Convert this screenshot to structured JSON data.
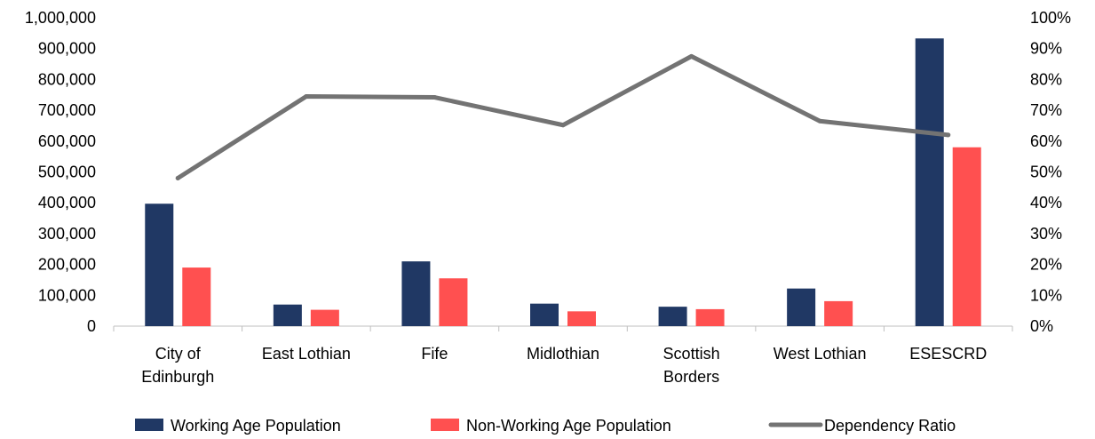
{
  "chart_data": {
    "type": "bar",
    "title": "",
    "categories": [
      [
        "City of",
        "Edinburgh"
      ],
      [
        "East Lothian"
      ],
      [
        "Fife"
      ],
      [
        "Midlothian"
      ],
      [
        "Scottish",
        "Borders"
      ],
      [
        "West Lothian"
      ],
      [
        "ESESCRD"
      ]
    ],
    "series": [
      {
        "name": "Working Age Population",
        "kind": "bar",
        "axis": "left",
        "color": "#203864",
        "values": [
          397000,
          70000,
          210000,
          73000,
          63000,
          122000,
          933000
        ]
      },
      {
        "name": "Non-Working Age Population",
        "kind": "bar",
        "axis": "left",
        "color": "#FF5050",
        "values": [
          190000,
          53000,
          155000,
          48000,
          55000,
          81000,
          580000
        ]
      },
      {
        "name": "Dependency Ratio",
        "kind": "line",
        "axis": "right",
        "color": "#737373",
        "values": [
          0.48,
          0.745,
          0.742,
          0.652,
          0.875,
          0.665,
          0.62
        ]
      }
    ],
    "left_axis": {
      "ylim": [
        0,
        1000000
      ],
      "ticks": [
        0,
        100000,
        200000,
        300000,
        400000,
        500000,
        600000,
        700000,
        800000,
        900000,
        1000000
      ],
      "tick_labels": [
        "0",
        "100,000",
        "200,000",
        "300,000",
        "400,000",
        "500,000",
        "600,000",
        "700,000",
        "800,000",
        "900,000",
        "1,000,000"
      ]
    },
    "right_axis": {
      "ylim": [
        0,
        1
      ],
      "ticks": [
        0,
        0.1,
        0.2,
        0.3,
        0.4,
        0.5,
        0.6,
        0.7,
        0.8,
        0.9,
        1.0
      ],
      "tick_labels": [
        "0%",
        "10%",
        "20%",
        "30%",
        "40%",
        "50%",
        "60%",
        "70%",
        "80%",
        "90%",
        "100%"
      ]
    },
    "grid": false,
    "legend": "bottom"
  }
}
